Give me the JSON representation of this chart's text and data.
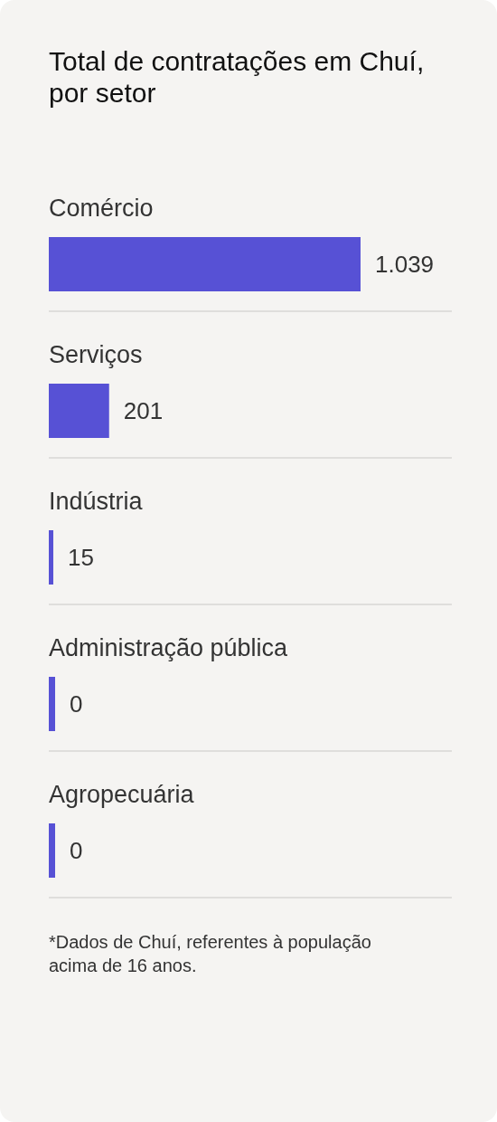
{
  "chart_data": {
    "type": "bar",
    "orientation": "horizontal",
    "title": "Total de contratações em Chuí, por setor",
    "categories": [
      "Comércio",
      "Serviços",
      "Indústria",
      "Administração pública",
      "Agropecuária"
    ],
    "values": [
      1039,
      201,
      15,
      0,
      0
    ],
    "color": "#5751d5",
    "value_labels": [
      "1.039",
      "201",
      "15",
      "0",
      "0"
    ],
    "annotations": [
      "*Dados de Chuí, referentes à população acima de 16 anos."
    ]
  }
}
